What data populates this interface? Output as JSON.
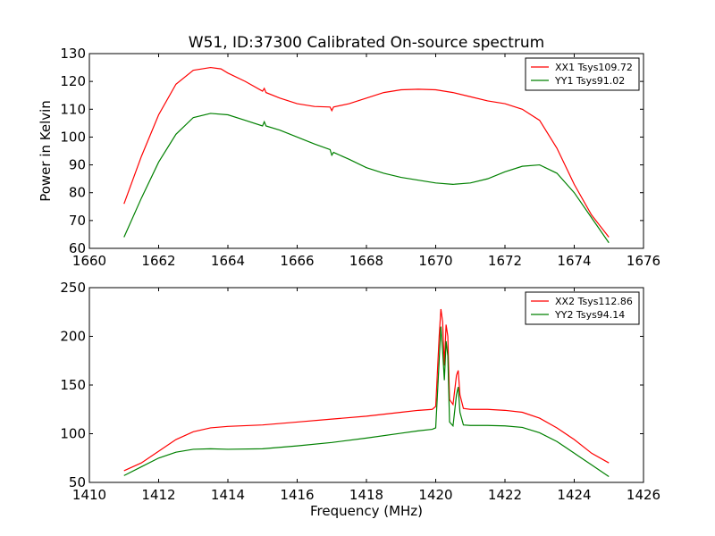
{
  "figure": {
    "title": "W51, ID:37300 Calibrated On-source spectrum"
  },
  "chart_data": [
    {
      "type": "line",
      "title": "W51, ID:37300 Calibrated On-source spectrum",
      "xlabel": "",
      "ylabel": "Power in Kelvin",
      "xlim": [
        1660,
        1676
      ],
      "ylim": [
        60,
        130
      ],
      "xticks": [
        "1660",
        "1662",
        "1664",
        "1666",
        "1668",
        "1670",
        "1672",
        "1674",
        "1676"
      ],
      "yticks": [
        "60",
        "70",
        "80",
        "90",
        "100",
        "110",
        "120",
        "130"
      ],
      "grid": false,
      "legend_position": "top-right",
      "series": [
        {
          "name": "XX1 Tsys109.72",
          "color": "#ff0000",
          "x": [
            1661.0,
            1661.5,
            1662.0,
            1662.5,
            1663.0,
            1663.5,
            1663.8,
            1664.0,
            1664.5,
            1665.0,
            1665.05,
            1665.1,
            1665.5,
            1666.0,
            1666.5,
            1666.95,
            1667.0,
            1667.05,
            1667.5,
            1668.0,
            1668.5,
            1669.0,
            1669.5,
            1670.0,
            1670.5,
            1671.0,
            1671.5,
            1672.0,
            1672.5,
            1673.0,
            1673.5,
            1674.0,
            1674.5,
            1675.0
          ],
          "y": [
            76,
            93,
            108,
            119,
            124,
            125,
            124.5,
            123,
            120,
            116.5,
            117.5,
            116,
            114,
            112,
            111,
            110.8,
            109.5,
            110.8,
            112,
            114,
            116,
            117,
            117.2,
            117,
            116,
            114.5,
            113,
            112,
            110,
            106,
            96,
            83,
            72,
            64
          ]
        },
        {
          "name": "YY1 Tsys91.02",
          "color": "#008000",
          "x": [
            1661.0,
            1661.5,
            1662.0,
            1662.5,
            1663.0,
            1663.5,
            1664.0,
            1664.5,
            1665.0,
            1665.05,
            1665.1,
            1665.5,
            1666.0,
            1666.5,
            1666.95,
            1667.0,
            1667.05,
            1667.5,
            1668.0,
            1668.5,
            1669.0,
            1669.5,
            1670.0,
            1670.5,
            1671.0,
            1671.5,
            1672.0,
            1672.5,
            1673.0,
            1673.5,
            1674.0,
            1674.5,
            1675.0
          ],
          "y": [
            64,
            78,
            91,
            101,
            107,
            108.5,
            108,
            106,
            104,
            105.5,
            104,
            102.5,
            100,
            97.5,
            95.5,
            93.5,
            94.5,
            92,
            89,
            87,
            85.5,
            84.5,
            83.5,
            83,
            83.5,
            85,
            87.5,
            89.5,
            90,
            87,
            80,
            71,
            62
          ]
        }
      ]
    },
    {
      "type": "line",
      "title": "",
      "xlabel": "Frequency (MHz)",
      "ylabel": "",
      "xlim": [
        1410,
        1426
      ],
      "ylim": [
        50,
        250
      ],
      "xticks": [
        "1410",
        "1412",
        "1414",
        "1416",
        "1418",
        "1420",
        "1422",
        "1424",
        "1426"
      ],
      "yticks": [
        "50",
        "100",
        "150",
        "200",
        "250"
      ],
      "grid": false,
      "legend_position": "top-right",
      "series": [
        {
          "name": "XX2 Tsys112.86",
          "color": "#ff0000",
          "x": [
            1411.0,
            1411.5,
            1412.0,
            1412.5,
            1413.0,
            1413.5,
            1414.0,
            1415.0,
            1416.0,
            1417.0,
            1418.0,
            1419.0,
            1419.5,
            1419.9,
            1420.0,
            1420.1,
            1420.15,
            1420.2,
            1420.25,
            1420.3,
            1420.35,
            1420.4,
            1420.5,
            1420.6,
            1420.65,
            1420.7,
            1420.8,
            1421.0,
            1421.5,
            1422.0,
            1422.5,
            1423.0,
            1423.5,
            1424.0,
            1424.5,
            1425.0
          ],
          "y": [
            62,
            70,
            82,
            94,
            102,
            106,
            107.5,
            109,
            112,
            115,
            118,
            122,
            124,
            125,
            128,
            200,
            228,
            215,
            170,
            212,
            200,
            135,
            130,
            160,
            165,
            140,
            126,
            125,
            125,
            124,
            122,
            116,
            106,
            94,
            80,
            70
          ]
        },
        {
          "name": "YY2 Tsys94.14",
          "color": "#008000",
          "x": [
            1411.0,
            1411.5,
            1412.0,
            1412.5,
            1413.0,
            1413.5,
            1414.0,
            1415.0,
            1416.0,
            1417.0,
            1418.0,
            1419.0,
            1419.5,
            1419.9,
            1420.0,
            1420.1,
            1420.15,
            1420.2,
            1420.25,
            1420.3,
            1420.35,
            1420.4,
            1420.5,
            1420.6,
            1420.65,
            1420.7,
            1420.8,
            1421.0,
            1421.5,
            1422.0,
            1422.5,
            1423.0,
            1423.5,
            1424.0,
            1424.5,
            1425.0
          ],
          "y": [
            57,
            66,
            75,
            81,
            84,
            84.5,
            84,
            84.5,
            87.5,
            91,
            95.5,
            100.5,
            103,
            104.5,
            106,
            175,
            210,
            185,
            155,
            195,
            180,
            112,
            108,
            140,
            148,
            122,
            109,
            108.5,
            108.5,
            108,
            106.5,
            101,
            92,
            80,
            68,
            56
          ]
        }
      ]
    }
  ]
}
